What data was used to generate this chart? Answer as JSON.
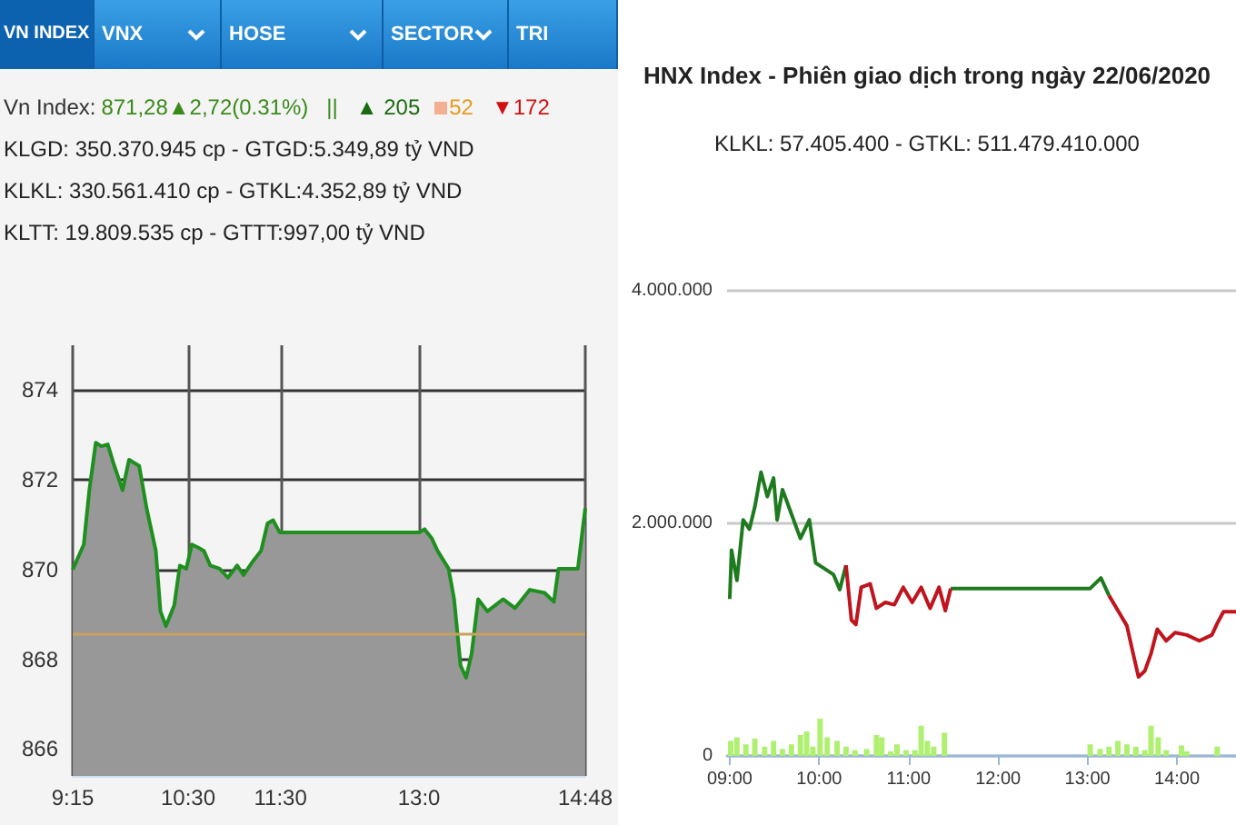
{
  "chart_data": [
    {
      "type": "area",
      "annotations": [
        "VN INDEX",
        "VNX",
        "HOSE",
        "SECTOR",
        "TRI",
        "Vn Index:",
        "871,28▲2,72(0.31%)",
        "||",
        "▲ 205",
        "52",
        "▼172",
        "KLGD: 350.370.945 cp - GTGD:5.349,89 tỷ VND",
        "KLKL: 330.561.410 cp - GTKL:4.352,89 tỷ VND",
        "KLTT: 19.809.535 cp - GTTT:997,00 tỷ VND"
      ],
      "series": [
        {
          "color": "#1f8f1f",
          "x": [
            9.25,
            9.37,
            9.43,
            9.5,
            9.56,
            9.63,
            9.69,
            9.79,
            9.86,
            9.97,
            10.05,
            10.15,
            10.2,
            10.26,
            10.35,
            10.41,
            10.48,
            10.54,
            10.61,
            10.67,
            10.74,
            10.84,
            10.93,
            11.03,
            11.1,
            11.2,
            11.29,
            11.36,
            11.42,
            11.49,
            13.0,
            13.06,
            13.14,
            13.2,
            13.32,
            13.38,
            13.45,
            13.51,
            13.57,
            13.64,
            13.74,
            13.91,
            14.04,
            14.2,
            14.36,
            14.46,
            14.51,
            14.72,
            14.8
          ],
          "values": [
            870.0,
            870.56,
            871.77,
            872.83,
            872.75,
            872.79,
            872.38,
            871.77,
            872.45,
            872.31,
            871.37,
            870.42,
            869.07,
            868.74,
            869.21,
            870.09,
            870.02,
            870.56,
            870.49,
            870.42,
            870.09,
            870.02,
            869.82,
            870.09,
            869.88,
            870.18,
            870.42,
            871.03,
            871.1,
            870.83,
            870.83,
            870.9,
            870.69,
            870.42,
            870.02,
            869.34,
            867.86,
            867.59,
            868.13,
            869.34,
            869.07,
            869.34,
            869.14,
            869.55,
            869.48,
            869.28,
            870.02,
            870.02,
            871.37
          ]
        }
      ],
      "xlim": [
        9.25,
        14.8
      ],
      "xticks": [
        {
          "value": 9.25,
          "label": "9:15"
        },
        {
          "value": 10.5,
          "label": "10:30"
        },
        {
          "value": 11.5,
          "label": "11:30"
        },
        {
          "value": 13,
          "label": "13:0"
        },
        {
          "value": 14.8,
          "label": "14:48"
        }
      ],
      "ylim": [
        865.4,
        875
      ],
      "yticks": [
        866,
        868,
        870,
        872,
        874
      ],
      "grid": true,
      "ref_lines": [
        {
          "axis": "y",
          "value": 868.56,
          "color": "#c8a060"
        }
      ]
    },
    {
      "type": "line",
      "title": "HNX Index - Phiên giao dịch trong ngày 22/06/2020",
      "subtitle": "KLKL: 57.405.400 - GTKL: 511.479.410.000",
      "series": [
        {
          "type": "bar",
          "color": "#b0f070",
          "x": [
            9.01,
            9.08,
            9.18,
            9.28,
            9.39,
            9.49,
            9.59,
            9.69,
            9.79,
            9.86,
            9.93,
            10.01,
            10.09,
            10.2,
            10.3,
            10.4,
            10.53,
            10.64,
            10.7,
            10.8,
            10.87,
            10.97,
            11.07,
            11.14,
            11.21,
            11.28,
            11.4,
            13.03,
            13.14,
            13.24,
            13.34,
            13.44,
            13.54,
            13.64,
            13.71,
            13.79,
            13.88,
            14.05,
            14.11,
            14.45
          ],
          "values": [
            130000,
            160000,
            100000,
            150000,
            80000,
            130000,
            60000,
            100000,
            180000,
            210000,
            80000,
            320000,
            160000,
            130000,
            80000,
            50000,
            60000,
            180000,
            160000,
            40000,
            100000,
            50000,
            50000,
            260000,
            130000,
            80000,
            200000,
            100000,
            60000,
            80000,
            130000,
            100000,
            80000,
            50000,
            260000,
            160000,
            50000,
            90000,
            40000,
            80000
          ]
        },
        {
          "type": "line",
          "color": "#1e7a1e",
          "x": [
            9.0,
            9.02,
            9.08,
            9.15,
            9.22,
            9.28,
            9.35,
            9.42,
            9.49,
            9.53,
            9.59,
            9.69,
            9.79,
            9.89,
            9.96,
            10.06,
            10.16,
            10.23,
            10.3,
            10.9,
            11.47,
            13.03,
            13.15,
            13.24
          ],
          "values": [
            1350000,
            1770000,
            1510000,
            2030000,
            1950000,
            2140000,
            2440000,
            2230000,
            2390000,
            2030000,
            2290000,
            2080000,
            1870000,
            2030000,
            1660000,
            1610000,
            1560000,
            1430000,
            1640000,
            null,
            1440000,
            1440000,
            1530000,
            1380000
          ]
        },
        {
          "type": "line",
          "color": "#c0141e",
          "x": [
            10.3,
            10.36,
            10.41,
            10.47,
            10.57,
            10.64,
            10.74,
            10.84,
            10.94,
            11.04,
            11.14,
            11.24,
            11.34,
            11.41,
            11.47,
            12.3,
            13.24,
            13.34,
            13.44,
            13.51,
            13.57,
            13.64,
            13.71,
            13.78,
            13.88,
            13.98,
            14.11,
            14.25,
            14.39,
            14.45,
            14.52,
            14.66
          ],
          "values": [
            1640000,
            1170000,
            1130000,
            1450000,
            1480000,
            1270000,
            1320000,
            1300000,
            1450000,
            1320000,
            1450000,
            1270000,
            1450000,
            1250000,
            1440000,
            null,
            1380000,
            1250000,
            1120000,
            880000,
            680000,
            730000,
            880000,
            1090000,
            990000,
            1060000,
            1040000,
            990000,
            1040000,
            1140000,
            1240000,
            1240000
          ]
        }
      ],
      "xlim": [
        8.97,
        14.66
      ],
      "xticks": [
        {
          "value": 9,
          "label": "09:00"
        },
        {
          "value": 10,
          "label": "10:00"
        },
        {
          "value": 11,
          "label": "11:00"
        },
        {
          "value": 12,
          "label": "12:00"
        },
        {
          "value": 13,
          "label": "13:00"
        },
        {
          "value": 14,
          "label": "14:00"
        }
      ],
      "ylim": [
        0,
        4000000
      ],
      "yticks": [
        {
          "value": 0,
          "label": "0"
        },
        {
          "value": 2000000,
          "label": "2.000.000"
        },
        {
          "value": 4000000,
          "label": "4.000.000"
        }
      ],
      "grid": "y"
    }
  ]
}
